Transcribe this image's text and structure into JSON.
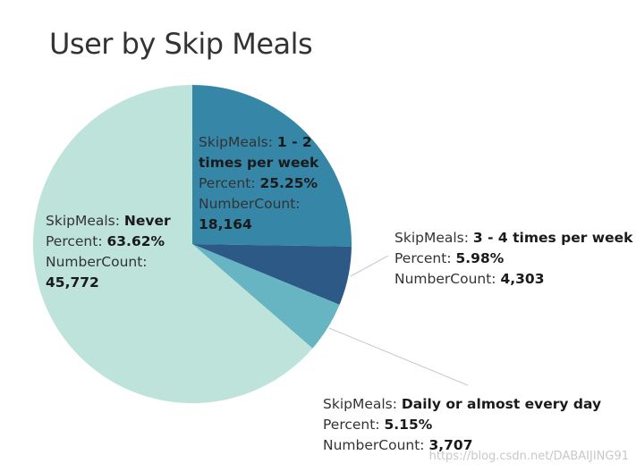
{
  "title": "User by Skip Meals",
  "watermark": "https://blog.csdn.net/DABAIJING91",
  "field_labels": {
    "category": "SkipMeals: ",
    "percent": "Percent: ",
    "count": "NumberCount: "
  },
  "chart_data": {
    "type": "pie",
    "title": "User by Skip Meals",
    "slices": [
      {
        "label": "1 - 2 times per week",
        "percent": 25.25,
        "percent_text": "25.25%",
        "count": 18164,
        "count_text": "18,164",
        "color": "#3686a7"
      },
      {
        "label": "3 - 4 times per week",
        "percent": 5.98,
        "percent_text": "5.98%",
        "count": 4303,
        "count_text": "4,303",
        "color": "#2d5987"
      },
      {
        "label": "Daily or almost every day",
        "percent": 5.15,
        "percent_text": "5.15%",
        "count": 3707,
        "count_text": "3,707",
        "color": "#67b4c2"
      },
      {
        "label": "Never",
        "percent": 63.62,
        "percent_text": "63.62%",
        "count": 45772,
        "count_text": "45,772",
        "color": "#bde3da"
      }
    ]
  }
}
